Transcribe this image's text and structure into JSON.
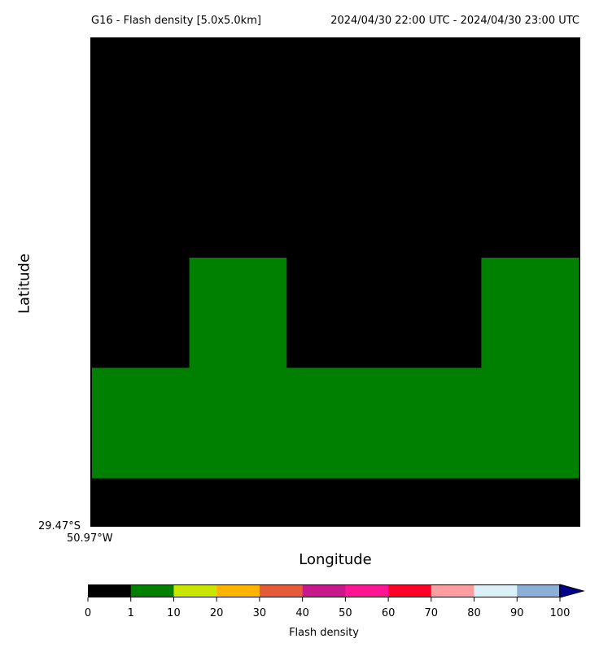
{
  "chart_data": {
    "type": "heatmap",
    "title_left": "G16 - Flash density [5.0x5.0km]",
    "title_right": "2024/04/30 22:00 UTC - 2024/04/30 23:00 UTC",
    "xlabel": "Longitude",
    "ylabel": "Latitude",
    "corner_lat_label": "29.47°S",
    "corner_lon_label": "50.97°W",
    "background_color": "#000000",
    "grid": [
      [
        0,
        0,
        0,
        0,
        0
      ],
      [
        0,
        0,
        0,
        0,
        0
      ],
      [
        0,
        5,
        0,
        0,
        5
      ],
      [
        5,
        5,
        5,
        5,
        5
      ]
    ],
    "colorbar": {
      "label": "Flash density",
      "extend": "max",
      "extend_color": "#00008b",
      "bins": [
        {
          "lo": 0,
          "hi": 1,
          "color": "#000000"
        },
        {
          "lo": 1,
          "hi": 10,
          "color": "#008000"
        },
        {
          "lo": 10,
          "hi": 20,
          "color": "#c8e600"
        },
        {
          "lo": 20,
          "hi": 30,
          "color": "#ffb400"
        },
        {
          "lo": 30,
          "hi": 40,
          "color": "#e65a3c"
        },
        {
          "lo": 40,
          "hi": 50,
          "color": "#c8198c"
        },
        {
          "lo": 50,
          "hi": 60,
          "color": "#ff1493"
        },
        {
          "lo": 60,
          "hi": 70,
          "color": "#ff0028"
        },
        {
          "lo": 70,
          "hi": 80,
          "color": "#ff9ea0"
        },
        {
          "lo": 80,
          "hi": 90,
          "color": "#dcf0f8"
        },
        {
          "lo": 90,
          "hi": 100,
          "color": "#8cafd7"
        }
      ],
      "tick_labels": [
        "0",
        "1",
        "10",
        "20",
        "30",
        "40",
        "50",
        "60",
        "70",
        "80",
        "90",
        "100"
      ]
    }
  }
}
